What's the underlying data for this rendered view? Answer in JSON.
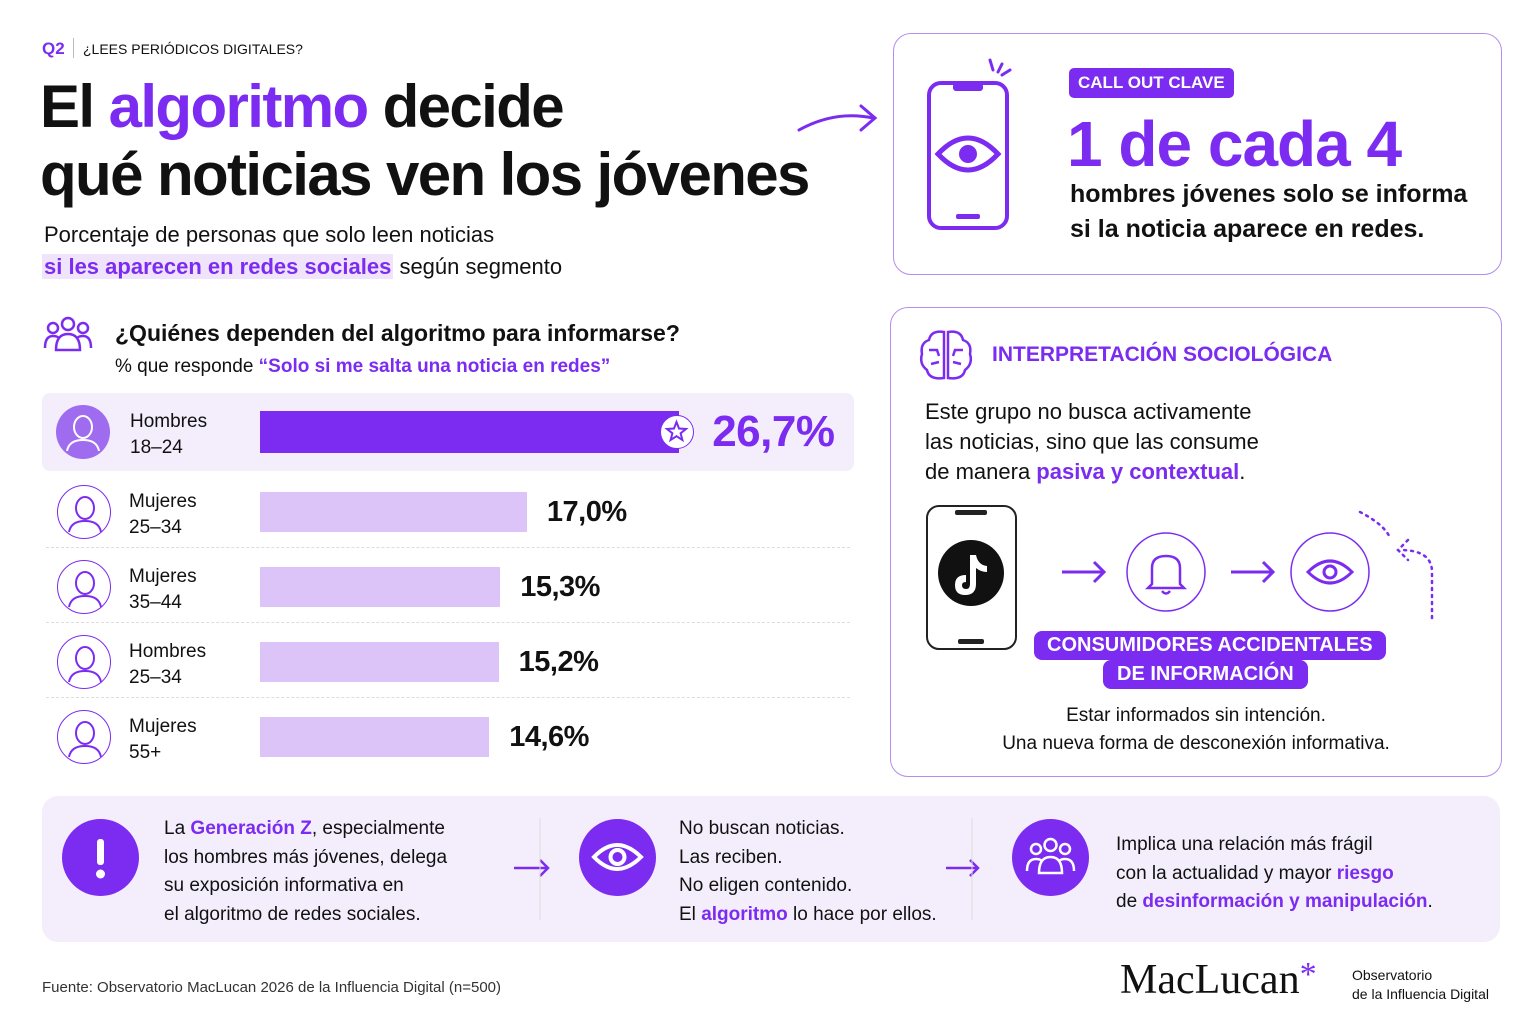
{
  "header": {
    "tag": "Q2",
    "question": "¿LEES PERIÓDICOS DIGITALES?",
    "title_parts": [
      "El ",
      "algoritmo",
      " decide",
      "qué noticias ven los jóvenes"
    ],
    "subtitle_parts": [
      "Porcentaje de personas que solo leen noticias",
      "si les aparecen en redes sociales",
      " según segmento"
    ]
  },
  "callout": {
    "badge": "CALL OUT CLAVE",
    "headline": "1 de cada 4",
    "text_lines": [
      "hombres jóvenes solo se informa",
      "si la noticia aparece en redes."
    ]
  },
  "chart_data": {
    "type": "bar",
    "orientation": "horizontal",
    "title": "¿Quiénes dependen del algoritmo para informarse?",
    "subtitle_parts": [
      "% que responde ",
      "“Solo si me salta una noticia en redes”"
    ],
    "categories": [
      [
        "Hombres",
        "18–24"
      ],
      [
        "Mujeres",
        "25–34"
      ],
      [
        "Mujeres",
        "35–44"
      ],
      [
        "Hombres",
        "25–34"
      ],
      [
        "Mujeres",
        "55+"
      ]
    ],
    "values": [
      26.7,
      17.0,
      15.3,
      15.2,
      14.6
    ],
    "value_labels": [
      "26,7%",
      "17,0%",
      "15,3%",
      "15,2%",
      "14,6%"
    ],
    "colors": [
      "#7b2cf0",
      "#dcc4f8",
      "#dcc4f8",
      "#dcc4f8",
      "#dcc4f8"
    ]
  },
  "interpretation": {
    "title": "INTERPRETACIÓN SOCIOLÓGICA",
    "text_parts": [
      "Este grupo no busca activamente",
      "las noticias, sino que las consume",
      "de manera ",
      "pasiva y contextual",
      "."
    ],
    "badge_lines": [
      "CONSUMIDORES ACCIDENTALES",
      "DE INFORMACIÓN"
    ],
    "caption_lines": [
      "Estar informados sin intención.",
      "Una nueva forma de desconexión informativa."
    ]
  },
  "bottom": [
    {
      "parts": [
        "La ",
        "Generación Z",
        ", especialmente",
        "los hombres más jóvenes, delega",
        "su exposición informativa en",
        "el algoritmo de redes sociales."
      ]
    },
    {
      "parts": [
        "No buscan noticias.",
        "Las reciben.",
        "No eligen contenido.",
        "El ",
        "algoritmo",
        " lo hace por ellos."
      ]
    },
    {
      "parts": [
        "Implica una relación más frágil",
        "con la actualidad y mayor ",
        "riesgo",
        "de ",
        "desinformación y manipulación",
        "."
      ]
    }
  ],
  "footer": {
    "source": "Fuente: Observatorio MacLucan 2026 de la Influencia Digital (n=500)",
    "brand": "MacLucan",
    "brand_mark": "*",
    "brand_sub": [
      "Observatorio",
      "de la Influencia Digital"
    ]
  }
}
